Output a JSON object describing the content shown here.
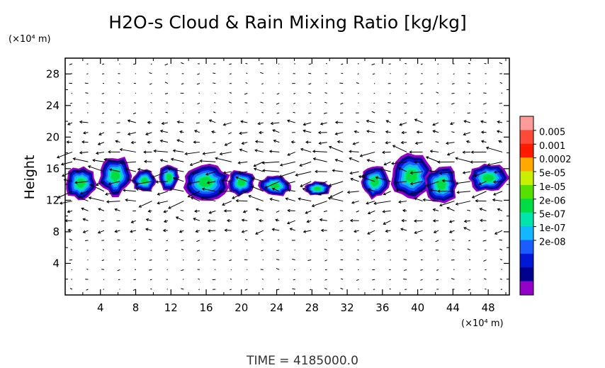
{
  "chart_data": {
    "type": "heatmap",
    "title": "H2O-s Cloud & Rain Mixing Ratio [kg/kg]",
    "ylabel": "Height",
    "y_unit": "(×10⁴ m)",
    "x_unit": "(×10⁴ m)",
    "x_ticks": [
      4,
      8,
      12,
      16,
      20,
      24,
      28,
      32,
      36,
      40,
      44,
      48
    ],
    "y_ticks": [
      4,
      8,
      12,
      16,
      20,
      24,
      28
    ],
    "xlim": [
      0,
      50.4
    ],
    "ylim": [
      0,
      30
    ],
    "time_label": "TIME = 4185000.0",
    "grid": false,
    "legend_position": "right",
    "colorbar": {
      "labels": [
        "0.005",
        "0.001",
        "0.0002",
        "5e-05",
        "1e-05",
        "2e-06",
        "5e-07",
        "1e-07",
        "2e-08"
      ],
      "colors": [
        "#ff9a9a",
        "#ff4a3a",
        "#ff1a00",
        "#ffa800",
        "#c8f000",
        "#55e000",
        "#00dd44",
        "#00e6aa",
        "#12b8ff",
        "#1a5cff",
        "#0018d6",
        "#00008c",
        "#9400c8"
      ]
    },
    "cloud_cells": [
      {
        "x0": 0.0,
        "x1": 3.6,
        "y0": 11.9,
        "y1": 16.4
      },
      {
        "x0": 3.8,
        "x1": 7.6,
        "y0": 12.6,
        "y1": 17.6
      },
      {
        "x0": 7.6,
        "x1": 10.4,
        "y0": 13.0,
        "y1": 15.9
      },
      {
        "x0": 10.6,
        "x1": 13.0,
        "y0": 13.2,
        "y1": 16.6
      },
      {
        "x0": 13.2,
        "x1": 18.6,
        "y0": 12.1,
        "y1": 16.6
      },
      {
        "x0": 18.4,
        "x1": 21.6,
        "y0": 12.6,
        "y1": 15.9
      },
      {
        "x0": 22.0,
        "x1": 25.6,
        "y0": 12.4,
        "y1": 15.3
      },
      {
        "x0": 27.0,
        "x1": 30.2,
        "y0": 12.5,
        "y1": 14.4
      },
      {
        "x0": 33.4,
        "x1": 36.8,
        "y0": 12.2,
        "y1": 16.4
      },
      {
        "x0": 37.0,
        "x1": 41.6,
        "y0": 12.3,
        "y1": 17.8
      },
      {
        "x0": 40.8,
        "x1": 44.6,
        "y0": 11.6,
        "y1": 16.4
      },
      {
        "x0": 45.6,
        "x1": 50.4,
        "y0": 13.0,
        "y1": 16.6
      }
    ]
  }
}
